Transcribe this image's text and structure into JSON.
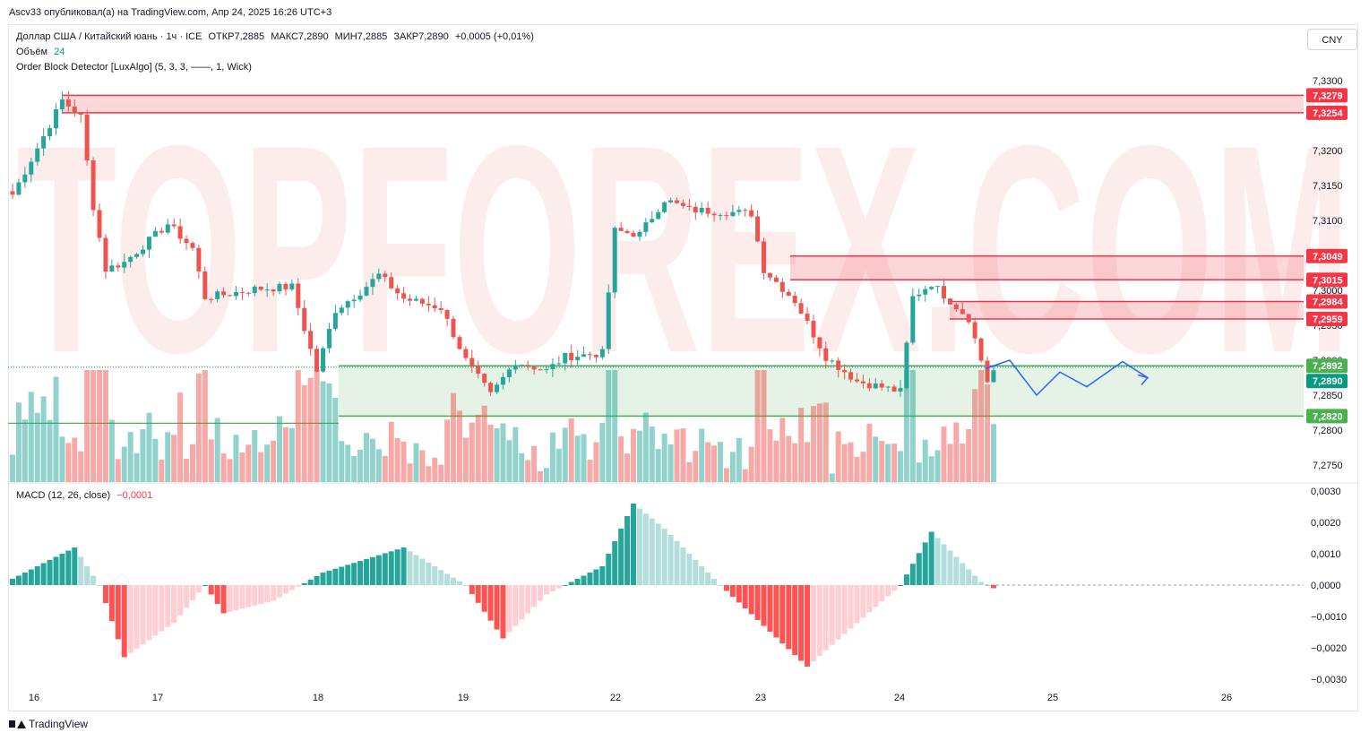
{
  "header": {
    "published_by": "Ascv33 опубликовал(а) на TradingView.com, Апр 24, 2025 16:26 UTC+3"
  },
  "legend": {
    "symbol": "Доллар США / Китайский юань · 1ч · ICE",
    "open": "ОТКР7,2885",
    "high": "МАКС7,2890",
    "low": "МИН7,2885",
    "close": "ЗАКР7,2890",
    "change": "+0,0005 (+0,01%)",
    "volume_label": "Объём",
    "volume_value": "24",
    "indicator": "Order Block Detector [LuxAlgo] (5, 3, 3, ——, 1, Wick)",
    "macd_label": "MACD (12, 26, close)",
    "macd_value": "−0,0001"
  },
  "currency_button": "CNY",
  "watermark": "TOPFOREX.COM",
  "price_axis": {
    "ticks": [
      "7,3300",
      "7,3250",
      "7,3200",
      "7,3150",
      "7,3100",
      "7,3050",
      "7,3000",
      "7,2950",
      "7,2900",
      "7,2850",
      "7,2800",
      "7,2750"
    ],
    "labels": [
      {
        "text": "7,3279",
        "color": "#f23645"
      },
      {
        "text": "7,3254",
        "color": "#f23645"
      },
      {
        "text": "7,3049",
        "color": "#f23645"
      },
      {
        "text": "7,3015",
        "color": "#f23645"
      },
      {
        "text": "7,2984",
        "color": "#f23645"
      },
      {
        "text": "7,2959",
        "color": "#f23645"
      },
      {
        "text": "7,2892",
        "color": "#4caf50"
      },
      {
        "text": "7,2890",
        "color": "#089981"
      },
      {
        "text": "7,2820",
        "color": "#4caf50"
      }
    ]
  },
  "macd_axis": {
    "ticks": [
      "0,0030",
      "0,0020",
      "0,0010",
      "0,0000",
      "−0,0010",
      "−0,0020",
      "−0,0030"
    ]
  },
  "time_axis": {
    "labels": [
      "16",
      "17",
      "18",
      "19",
      "22",
      "23",
      "24",
      "25",
      "26"
    ]
  },
  "order_blocks": [
    {
      "type": "bearish",
      "top": "7,3279",
      "bottom": "7,3254"
    },
    {
      "type": "bearish",
      "top": "7,3049",
      "bottom": "7,3015"
    },
    {
      "type": "bearish",
      "top": "7,2984",
      "bottom": "7,2959"
    },
    {
      "type": "bullish",
      "top": "7,2892",
      "bottom": "7,2820"
    }
  ],
  "colors": {
    "up": "#26a69a",
    "down": "#ef5350",
    "bearish_block": "#f23645",
    "bullish_block": "#4caf50",
    "forecast": "#2962ff"
  },
  "footer": {
    "brand": "TradingView"
  }
}
